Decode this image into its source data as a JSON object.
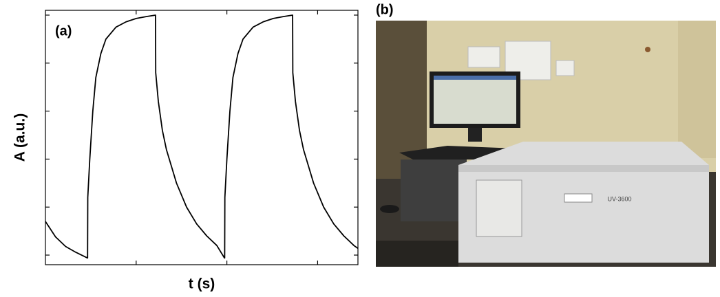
{
  "chart_data": {
    "type": "line",
    "annotations": [
      "(a)"
    ],
    "x_label": "t (s)",
    "y_label": "A (a.u.)",
    "x": [
      0,
      0.5,
      1.0,
      1.5,
      2.08,
      2.09,
      2.1,
      2.2,
      2.35,
      2.5,
      2.75,
      3.0,
      3.5,
      4.0,
      4.5,
      5.0,
      5.46,
      5.47,
      5.6,
      5.8,
      6.0,
      6.5,
      7.0,
      7.5,
      8.0,
      8.5,
      8.88,
      8.89,
      8.9,
      9.0,
      9.15,
      9.3,
      9.55,
      9.8,
      10.3,
      10.8,
      11.3,
      11.8,
      12.26,
      12.27,
      12.4,
      12.6,
      12.8,
      13.3,
      13.8,
      14.3,
      14.8,
      15.3,
      15.5
    ],
    "series": [
      {
        "color": "#000000",
        "values": [
          0.7,
          0.38,
          0.18,
          0.06,
          -0.06,
          -0.06,
          1.2,
          2.0,
          3.0,
          3.7,
          4.2,
          4.5,
          4.75,
          4.86,
          4.93,
          4.97,
          5.0,
          3.8,
          3.2,
          2.6,
          2.2,
          1.5,
          1.0,
          0.65,
          0.4,
          0.2,
          -0.06,
          -0.06,
          1.2,
          2.0,
          3.0,
          3.7,
          4.2,
          4.5,
          4.75,
          4.86,
          4.93,
          4.97,
          5.0,
          3.8,
          3.2,
          2.6,
          2.2,
          1.5,
          1.0,
          0.65,
          0.4,
          0.2,
          0.14
        ]
      }
    ],
    "xlim": [
      0,
      15.5
    ],
    "ylim": [
      -0.2,
      5.1
    ],
    "xticks": [
      4.5,
      9,
      13.5
    ],
    "yticks": [
      0,
      1,
      2,
      3,
      4,
      5
    ]
  },
  "photo": {
    "label": "(b)",
    "instrument_label": "UV-3600"
  }
}
